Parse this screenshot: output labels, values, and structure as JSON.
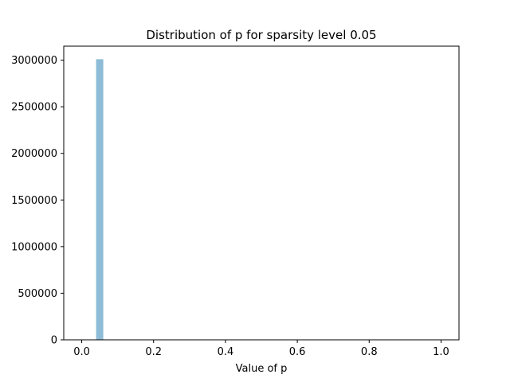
{
  "chart_data": {
    "type": "bar",
    "title": "Distribution of p for sparsity level 0.05",
    "xlabel": "Value of p",
    "ylabel": "",
    "xlim": [
      -0.05,
      1.05
    ],
    "ylim": [
      0,
      3150000
    ],
    "grid": false,
    "x_ticks": [
      {
        "value": 0.0,
        "label": "0.0"
      },
      {
        "value": 0.2,
        "label": "0.2"
      },
      {
        "value": 0.4,
        "label": "0.4"
      },
      {
        "value": 0.6,
        "label": "0.6"
      },
      {
        "value": 0.8,
        "label": "0.8"
      },
      {
        "value": 1.0,
        "label": "1.0"
      }
    ],
    "y_ticks": [
      {
        "value": 0,
        "label": "0"
      },
      {
        "value": 500000,
        "label": "500000"
      },
      {
        "value": 1000000,
        "label": "1000000"
      },
      {
        "value": 1500000,
        "label": "1500000"
      },
      {
        "value": 2000000,
        "label": "2000000"
      },
      {
        "value": 2500000,
        "label": "2500000"
      },
      {
        "value": 3000000,
        "label": "3000000"
      }
    ],
    "bins": [
      {
        "x0": 0.04,
        "x1": 0.06,
        "count": 3010000
      }
    ],
    "bar_color": "#8ebcd6"
  }
}
